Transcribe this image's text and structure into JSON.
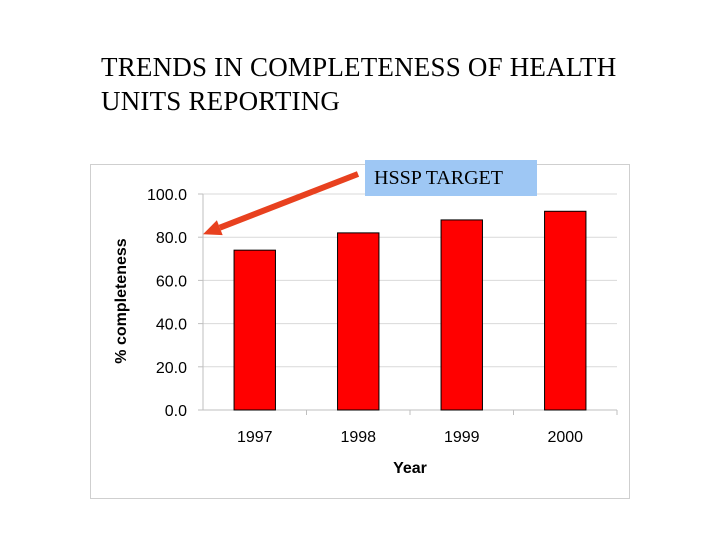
{
  "slide": {
    "title_line1": "TRENDS IN COMPLETENESS OF HEALTH",
    "title_line2": "UNITS REPORTING"
  },
  "callout": {
    "label": "HSSP TARGET",
    "bg_color": "#9ec7f4",
    "arrow_color": "#e8411f"
  },
  "chart_data": {
    "type": "bar",
    "categories": [
      "1997",
      "1998",
      "1999",
      "2000"
    ],
    "values": [
      74,
      82,
      88,
      92
    ],
    "title": "",
    "xlabel": "Year",
    "ylabel": "% completeness",
    "ylim": [
      0,
      100
    ],
    "yticks": [
      "0.0",
      "20.0",
      "40.0",
      "60.0",
      "80.0",
      "100.0"
    ],
    "grid": true,
    "bar_color": "#ff0000",
    "bar_edge_color": "#000000",
    "annotation_target_value": 80
  }
}
